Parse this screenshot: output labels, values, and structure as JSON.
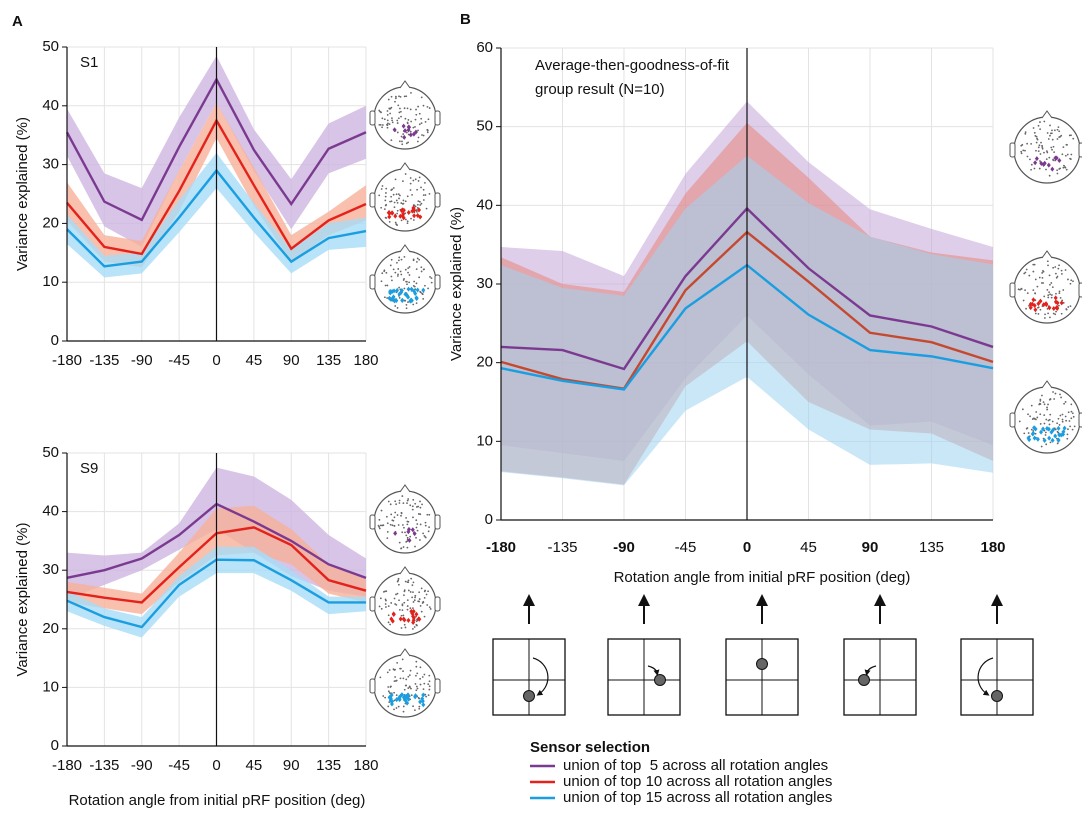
{
  "chart_data": [
    {
      "type": "line",
      "panel_label": "A",
      "title": "S1",
      "ylabel": "Variance explained (%)",
      "x": [
        -180,
        -135,
        -90,
        -45,
        0,
        45,
        90,
        135,
        180
      ],
      "xlim": [
        -180,
        180
      ],
      "xticks": [
        -180,
        -135,
        -90,
        -45,
        0,
        45,
        90,
        135,
        180
      ],
      "ylim": [
        0,
        50
      ],
      "yticks": [
        0,
        10,
        20,
        30,
        40,
        50
      ],
      "grid": true,
      "reference_x": 0,
      "series": [
        {
          "color": "#7b3a90",
          "band_color": "#cdb5e0",
          "values": [
            35.5,
            23.7,
            20.6,
            33,
            44.5,
            32.5,
            23.3,
            32.7,
            35.5
          ],
          "upper": [
            39.5,
            28.5,
            26,
            38,
            48.5,
            36,
            27.5,
            37,
            40
          ],
          "lower": [
            31.5,
            19.5,
            16,
            29,
            40.5,
            29,
            19,
            28.5,
            31
          ]
        },
        {
          "color": "#e3221c",
          "band_color": "#f7b09a",
          "values": [
            23.5,
            16,
            14.8,
            25.5,
            37.5,
            26.5,
            15.7,
            20.5,
            23.3
          ],
          "upper": [
            27,
            18,
            17,
            29,
            40.5,
            29.5,
            18,
            22,
            26.5
          ],
          "lower": [
            20.5,
            13.5,
            12.5,
            22,
            34.5,
            23,
            13.5,
            18,
            20.5
          ]
        },
        {
          "color": "#1a9ee0",
          "band_color": "#a6dcf7",
          "values": [
            19,
            12.7,
            13.5,
            21,
            29,
            21,
            13.5,
            17.5,
            18.7
          ],
          "upper": [
            21.5,
            14.5,
            15,
            24,
            32,
            23.5,
            15.5,
            20,
            21
          ],
          "lower": [
            16.5,
            10.8,
            11.5,
            18.5,
            26,
            18.5,
            11.5,
            15.5,
            16
          ]
        }
      ]
    },
    {
      "type": "line",
      "title": "S9",
      "ylabel": "Variance explained (%)",
      "xlabel": "Rotation angle from initial pRF position (deg)",
      "x": [
        -180,
        -135,
        -90,
        -45,
        0,
        45,
        90,
        135,
        180
      ],
      "xlim": [
        -180,
        180
      ],
      "xticks": [
        -180,
        -135,
        -90,
        -45,
        0,
        45,
        90,
        135,
        180
      ],
      "ylim": [
        0,
        50
      ],
      "yticks": [
        0,
        10,
        20,
        30,
        40,
        50
      ],
      "grid": true,
      "reference_x": 0,
      "series": [
        {
          "color": "#7b3a90",
          "band_color": "#cdb5e0",
          "values": [
            28.7,
            30,
            32,
            36,
            41.3,
            38.3,
            35,
            31,
            28.7
          ],
          "upper": [
            33,
            32.5,
            33,
            38,
            47.5,
            46,
            42,
            36,
            32
          ],
          "lower": [
            25,
            27.5,
            30,
            33.5,
            37,
            33,
            29,
            26.5,
            25.5
          ]
        },
        {
          "color": "#e3221c",
          "band_color": "#f7b09a",
          "values": [
            26.3,
            25.3,
            24.5,
            30.5,
            36.3,
            37.3,
            34.3,
            28.3,
            26.5
          ],
          "upper": [
            28,
            27,
            26,
            33,
            40.5,
            41,
            37,
            31,
            28.5
          ],
          "lower": [
            24.5,
            23.5,
            22.5,
            28,
            32.5,
            33,
            31,
            26,
            24.5
          ]
        },
        {
          "color": "#1a9ee0",
          "band_color": "#a6dcf7",
          "values": [
            24.8,
            22,
            20.3,
            27.5,
            31.8,
            31.7,
            28.3,
            24.5,
            24.5
          ],
          "upper": [
            26.5,
            23.5,
            22,
            29,
            34,
            34,
            30,
            25.5,
            25.5
          ],
          "lower": [
            23,
            20.5,
            18.5,
            25.5,
            29.5,
            29.5,
            26.5,
            22.5,
            23
          ]
        }
      ]
    },
    {
      "type": "line",
      "panel_label": "B",
      "title_lines": [
        "Average-then-goodness-of-fit",
        "group result (N=10)"
      ],
      "ylabel": "Variance explained (%)",
      "xlabel": "Rotation angle from initial pRF position (deg)",
      "x": [
        -180,
        -135,
        -90,
        -45,
        0,
        45,
        90,
        135,
        180
      ],
      "xlim": [
        -180,
        180
      ],
      "xticks": [
        -180,
        -135,
        -90,
        -45,
        0,
        45,
        90,
        135,
        180
      ],
      "xtick_bold": [
        true,
        false,
        true,
        false,
        true,
        false,
        true,
        false,
        true
      ],
      "ylim": [
        0,
        60
      ],
      "yticks": [
        0,
        10,
        20,
        30,
        40,
        50,
        60
      ],
      "grid": true,
      "reference_x": 0,
      "legend_title": "Sensor selection",
      "series": [
        {
          "name": "union of top  5 across all rotation angles",
          "color": "#7b3a90",
          "band_color": "#c3a6d8",
          "values": [
            22,
            21.6,
            19.2,
            31,
            39.6,
            32,
            26,
            24.6,
            22
          ],
          "upper": [
            34.7,
            34.2,
            31,
            44,
            53.2,
            45.5,
            39.5,
            37,
            34.7
          ],
          "lower": [
            9.5,
            8.5,
            7.5,
            18,
            26,
            18.5,
            12,
            12.5,
            9.5
          ]
        },
        {
          "name": "union of top 10 across all rotation angles",
          "color": "#e3221c",
          "line_color": "#c4492f",
          "band_color": "#e8857a",
          "values": [
            20.1,
            17.9,
            16.7,
            29.2,
            36.6,
            30.3,
            23.8,
            22.6,
            20.1
          ],
          "upper": [
            33.4,
            30,
            29,
            41.5,
            50.5,
            43.5,
            36,
            34,
            33
          ],
          "lower": [
            6.2,
            5.4,
            4.5,
            17,
            22.7,
            15,
            11.5,
            11,
            7.5
          ]
        },
        {
          "name": "union of top 15 across all rotation angles",
          "color": "#1a9ee0",
          "band_color": "#9fd4f3",
          "values": [
            19.3,
            17.7,
            16.6,
            26.9,
            32.4,
            26.1,
            21.6,
            20.8,
            19.3
          ],
          "upper": [
            32.4,
            29.5,
            28.5,
            39.6,
            46.3,
            40.3,
            36,
            33.8,
            32.5
          ],
          "lower": [
            6.1,
            5.3,
            4.4,
            13.9,
            18.2,
            11.5,
            7,
            7.2,
            6
          ]
        }
      ]
    }
  ]
}
